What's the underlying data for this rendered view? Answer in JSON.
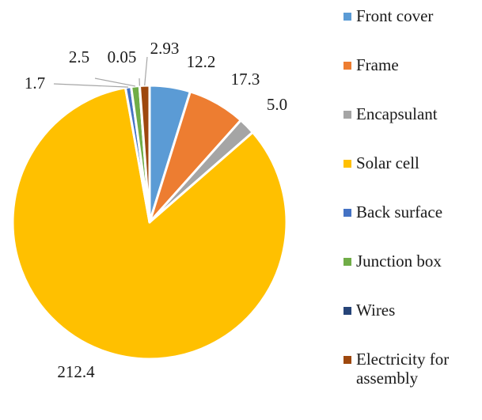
{
  "chart_data": {
    "type": "pie",
    "title": "",
    "start_angle_deg": 0,
    "direction": "clockwise",
    "legend_position": "right",
    "slices": [
      {
        "name": "Front cover",
        "value": 12.2,
        "label": "12.2",
        "color": "#5b9bd5"
      },
      {
        "name": "Frame",
        "value": 17.3,
        "label": "17.3",
        "color": "#ed7d31"
      },
      {
        "name": "Encapsulant",
        "value": 5.0,
        "label": "5.0",
        "color": "#a5a5a5"
      },
      {
        "name": "Solar cell",
        "value": 212.4,
        "label": "212.4",
        "color": "#ffc000"
      },
      {
        "name": "Back surface",
        "value": 1.7,
        "label": "1.7",
        "color": "#4472c4"
      },
      {
        "name": "Junction box",
        "value": 2.5,
        "label": "2.5",
        "color": "#70ad47"
      },
      {
        "name": "Wires",
        "value": 0.05,
        "label": "0.05",
        "color": "#264478"
      },
      {
        "name": "Electricity for assembly",
        "value": 2.93,
        "label": "2.93",
        "color": "#9e480e"
      }
    ]
  }
}
